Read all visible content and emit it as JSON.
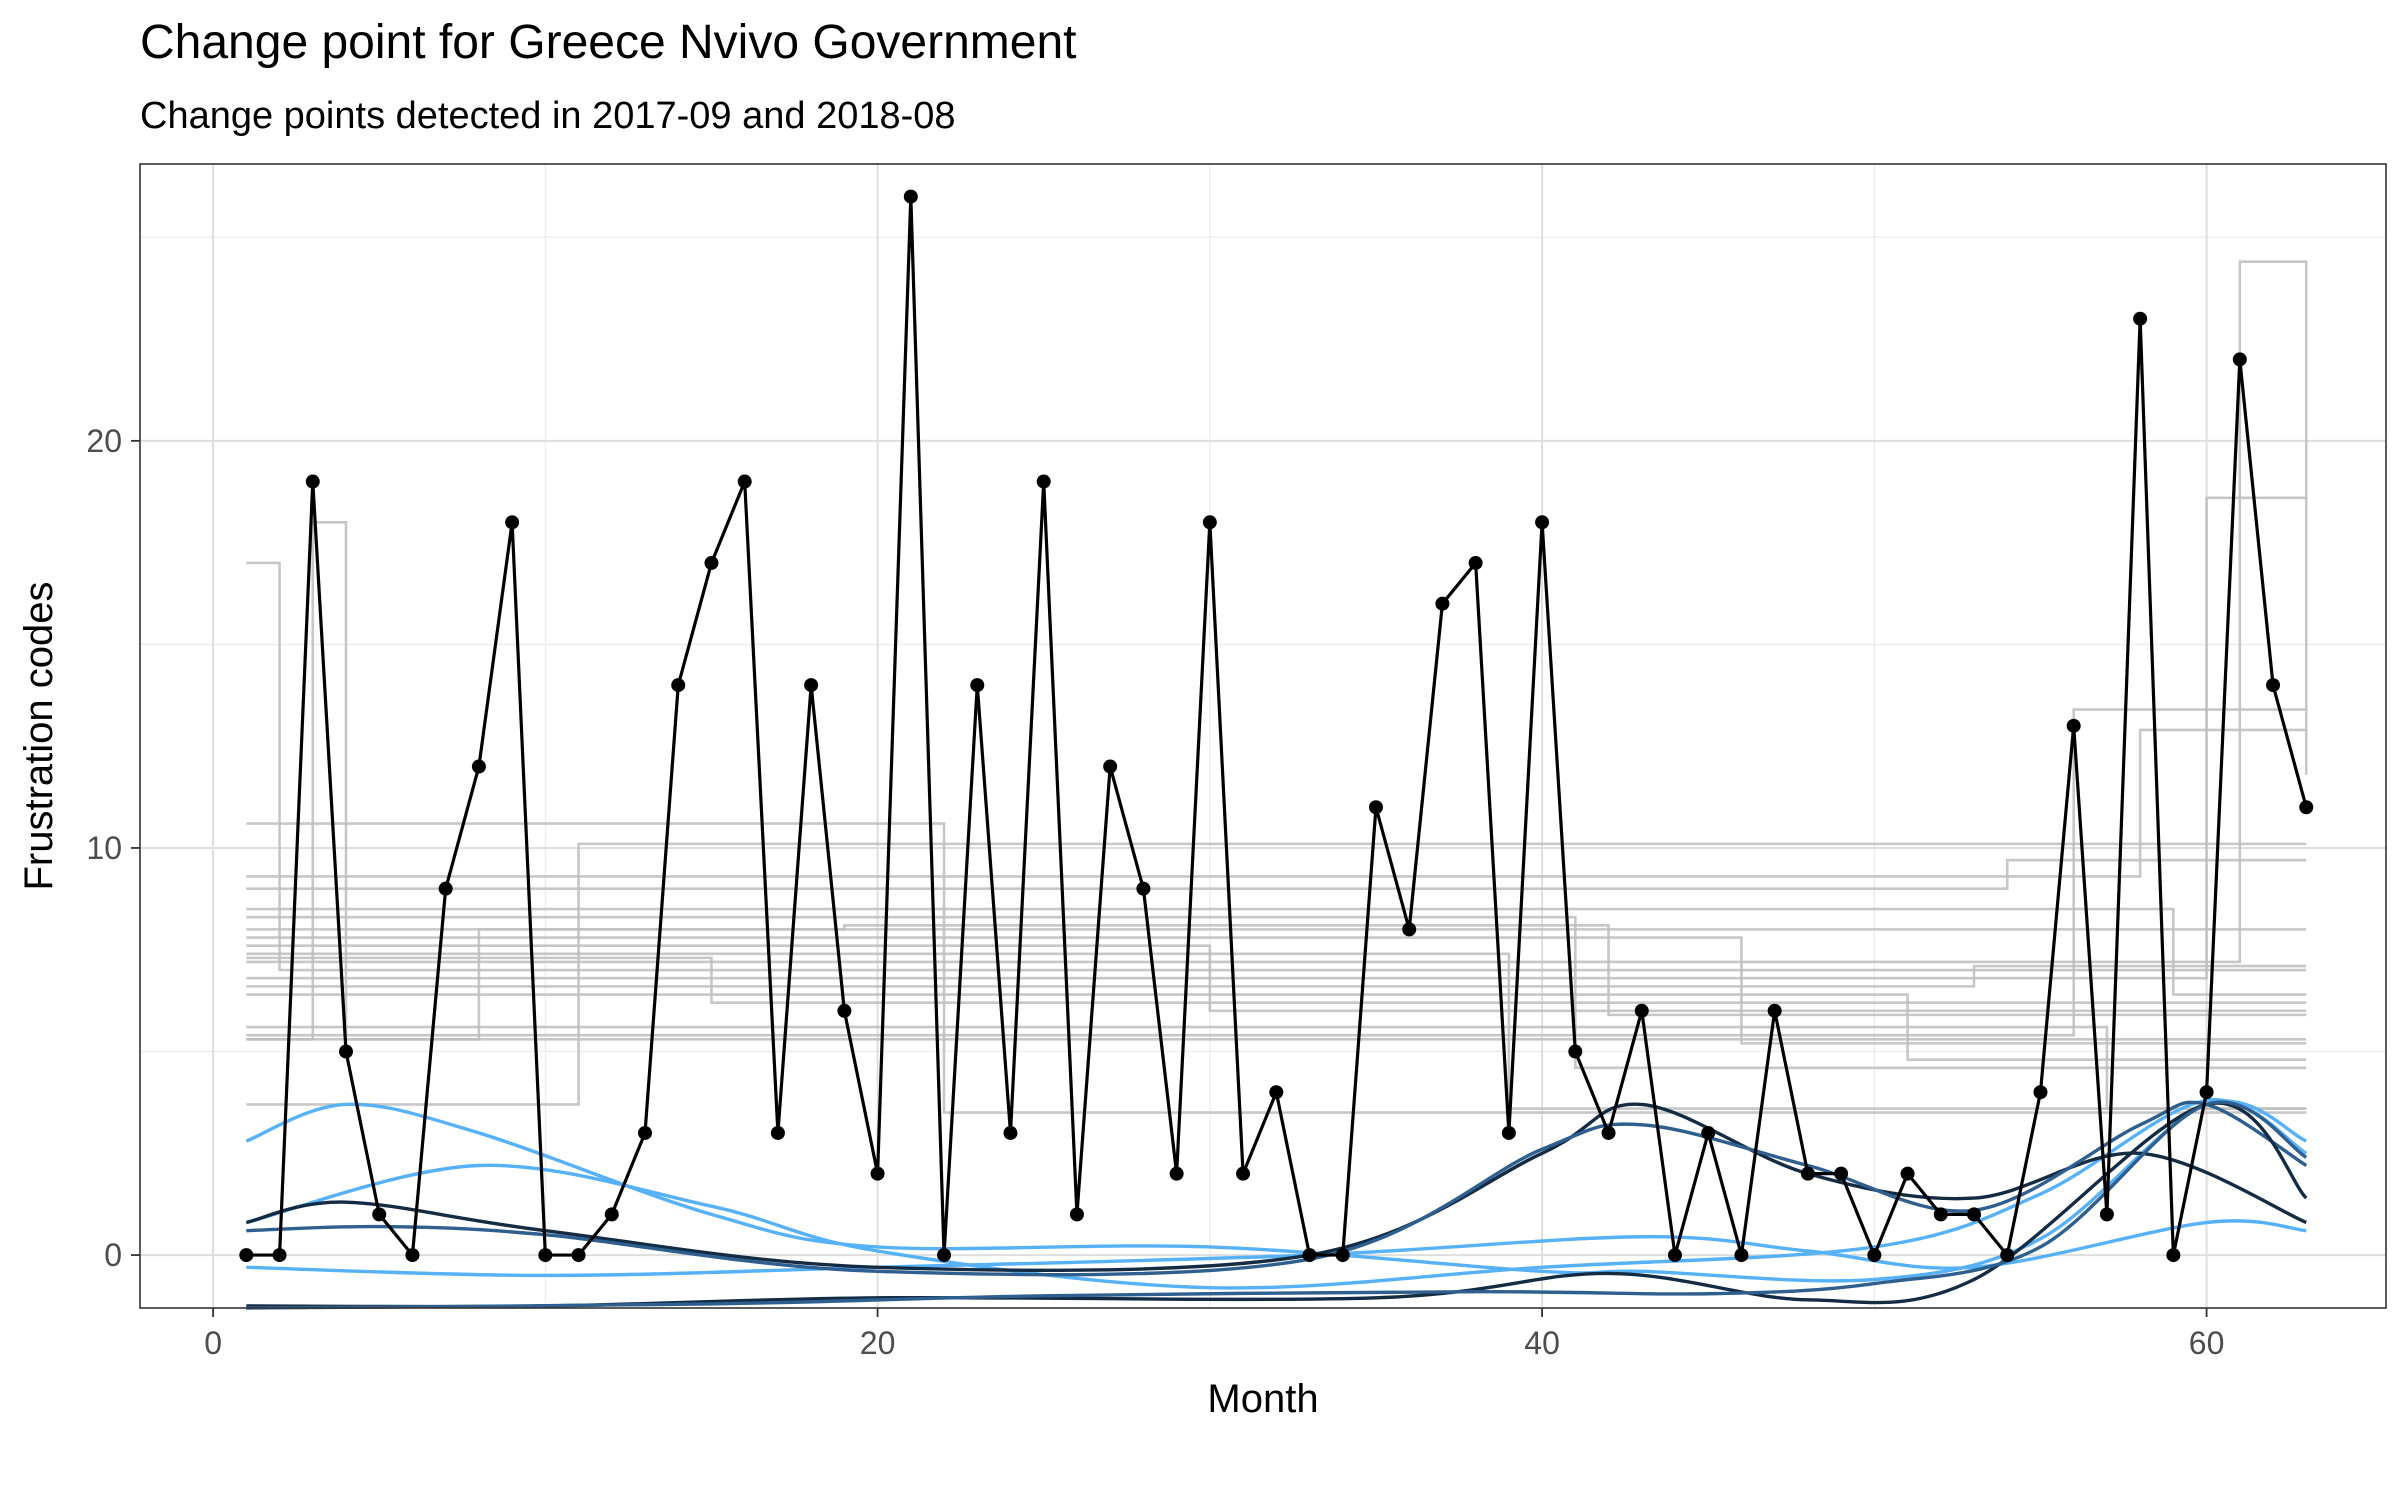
{
  "chart_data": {
    "type": "line",
    "title": "Change point for Greece Nvivo Government",
    "subtitle": "Change points detected in 2017-09 and 2018-08",
    "xlabel": "Month",
    "ylabel": "Frustration codes",
    "xlim": [
      -2.2,
      65.4
    ],
    "ylim": [
      -1.3,
      26.8
    ],
    "xticks": [
      0,
      20,
      40,
      60
    ],
    "yticks": [
      0,
      10,
      20
    ],
    "grid": true,
    "legend": "none",
    "colors": {
      "observed": "#000000",
      "step_lines": "#bdbdbd",
      "light_blue": "#56B1F7",
      "dark_navy": "#132B43",
      "mid_blue": "#2E5F8E"
    },
    "series": [
      {
        "role": "observed",
        "x": [
          1,
          2,
          3,
          4,
          5,
          6,
          7,
          8,
          9,
          10,
          11,
          12,
          13,
          14,
          15,
          16,
          17,
          18,
          19,
          20,
          21,
          22,
          23,
          24,
          25,
          26,
          27,
          28,
          29,
          30,
          31,
          32,
          33,
          34,
          35,
          36,
          37,
          38,
          39,
          40,
          41,
          42,
          43,
          44,
          45,
          46,
          47,
          48,
          49,
          50,
          51,
          52,
          53,
          54,
          55,
          56,
          57,
          58,
          59,
          60,
          61,
          62,
          63
        ],
        "values": [
          0,
          0,
          19,
          5,
          1,
          0,
          9,
          12,
          18,
          0,
          0,
          1,
          3,
          14,
          17,
          19,
          3,
          14,
          6,
          2,
          26,
          0,
          14,
          3,
          19,
          1,
          12,
          9,
          2,
          18,
          2,
          4,
          0,
          0,
          11,
          8,
          16,
          17,
          3,
          18,
          5,
          3,
          6,
          0,
          3,
          0,
          6,
          2,
          2,
          0,
          2,
          1,
          1,
          0,
          4,
          13,
          1,
          23,
          0,
          4,
          22,
          14,
          11
        ]
      }
    ],
    "step_series": [
      {
        "x": [
          1,
          2,
          63
        ],
        "values": [
          17,
          7,
          7
        ]
      },
      {
        "x": [
          1,
          3,
          4,
          63
        ],
        "values": [
          5.3,
          18,
          5.3,
          5.3
        ]
      },
      {
        "x": [
          1,
          8,
          63
        ],
        "values": [
          5.3,
          8,
          8
        ]
      },
      {
        "x": [
          1,
          11,
          63
        ],
        "values": [
          3.7,
          10.1,
          10.1
        ]
      },
      {
        "x": [
          1,
          22,
          63
        ],
        "values": [
          10.6,
          3.5,
          3.5
        ]
      },
      {
        "x": [
          1,
          15,
          63
        ],
        "values": [
          7.3,
          6.2,
          6.2
        ]
      },
      {
        "x": [
          1,
          19,
          42,
          63
        ],
        "values": [
          8,
          8.1,
          5.9,
          5.9
        ]
      },
      {
        "x": [
          1,
          30,
          63
        ],
        "values": [
          7.6,
          6,
          6
        ]
      },
      {
        "x": [
          1,
          39,
          63
        ],
        "values": [
          7.4,
          3.6,
          3.6
        ]
      },
      {
        "x": [
          1,
          41,
          63
        ],
        "values": [
          8.3,
          4.6,
          4.6
        ]
      },
      {
        "x": [
          1,
          58,
          63
        ],
        "values": [
          9.3,
          12.9,
          12.9
        ]
      },
      {
        "x": [
          1,
          61,
          63
        ],
        "values": [
          7.2,
          24.4,
          11.8
        ]
      },
      {
        "x": [
          1,
          60,
          63
        ],
        "values": [
          6.8,
          18.6,
          18.6
        ]
      },
      {
        "x": [
          1,
          56,
          63
        ],
        "values": [
          5.4,
          13.4,
          13.4
        ]
      },
      {
        "x": [
          1,
          54,
          63
        ],
        "values": [
          9,
          9.7,
          9.7
        ]
      },
      {
        "x": [
          1,
          53,
          63
        ],
        "values": [
          6.6,
          7.1,
          7.1
        ]
      },
      {
        "x": [
          1,
          57,
          63
        ],
        "values": [
          5.6,
          3.6,
          3.6
        ]
      },
      {
        "x": [
          1,
          51,
          63
        ],
        "values": [
          6.4,
          4.8,
          4.8
        ]
      },
      {
        "x": [
          1,
          59,
          63
        ],
        "values": [
          8.5,
          6.4,
          6.4
        ]
      },
      {
        "x": [
          1,
          46,
          63
        ],
        "values": [
          7.8,
          5.2,
          5.2
        ]
      }
    ],
    "smooth_series": [
      {
        "color": "light_blue",
        "x": [
          1,
          4,
          8,
          15,
          20,
          30,
          40,
          43,
          50,
          55,
          60,
          63
        ],
        "values": [
          2.8,
          3.7,
          3,
          1,
          0.2,
          0.2,
          -0.4,
          -0.4,
          -0.6,
          0.4,
          3.7,
          2.8
        ]
      },
      {
        "color": "light_blue",
        "x": [
          1,
          8,
          15,
          20,
          30,
          40,
          50,
          55,
          60,
          63
        ],
        "values": [
          0.8,
          2.2,
          1.2,
          0.1,
          -0.8,
          -0.3,
          0.2,
          1.5,
          3.8,
          2.5
        ]
      },
      {
        "color": "light_blue",
        "x": [
          1,
          10,
          20,
          33,
          43,
          48,
          53,
          60,
          63
        ],
        "values": [
          -0.3,
          -0.5,
          -0.3,
          0,
          0.45,
          0.1,
          -0.3,
          0.8,
          0.6
        ]
      },
      {
        "color": "dark_navy",
        "x": [
          1,
          4,
          10,
          20,
          33,
          40,
          43,
          48,
          53,
          58,
          63
        ],
        "values": [
          0.8,
          1.3,
          0.6,
          -0.3,
          0,
          2.5,
          3.7,
          2,
          1.4,
          2.5,
          0.8
        ]
      },
      {
        "color": "mid_blue",
        "x": [
          1,
          5,
          10,
          20,
          33,
          40,
          43,
          48,
          53,
          58,
          60,
          63
        ],
        "values": [
          0.6,
          0.7,
          0.5,
          -0.4,
          -0.1,
          2.6,
          3.2,
          2.2,
          1.1,
          3.2,
          3.7,
          2.2
        ]
      },
      {
        "color": "dark_navy",
        "x": [
          1,
          10,
          20,
          35,
          42,
          48,
          53,
          60,
          63
        ],
        "values": [
          -1.25,
          -1.25,
          -1.05,
          -1.05,
          -0.45,
          -1.1,
          -0.6,
          3.7,
          1.4
        ]
      },
      {
        "color": "mid_blue",
        "x": [
          1,
          15,
          25,
          38,
          45,
          50,
          55,
          60,
          63
        ],
        "values": [
          -1.3,
          -1.2,
          -1,
          -0.9,
          -0.95,
          -0.7,
          0.2,
          3.7,
          2.4
        ]
      }
    ]
  }
}
